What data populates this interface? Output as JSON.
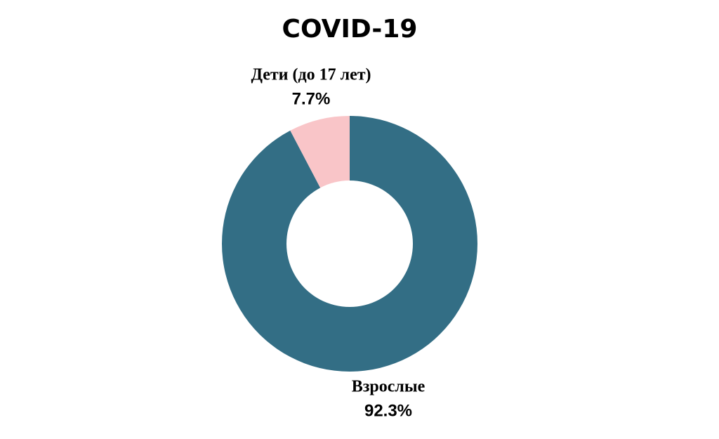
{
  "chart_data": {
    "type": "donut",
    "title": "COVID-19",
    "categories": [
      "Взрослые",
      "Дети (до 17 лет)"
    ],
    "values": [
      92.3,
      7.7
    ],
    "value_labels": [
      "92.3%",
      "7.7%"
    ],
    "colors": [
      "#336e85",
      "#f9c5c8"
    ]
  }
}
